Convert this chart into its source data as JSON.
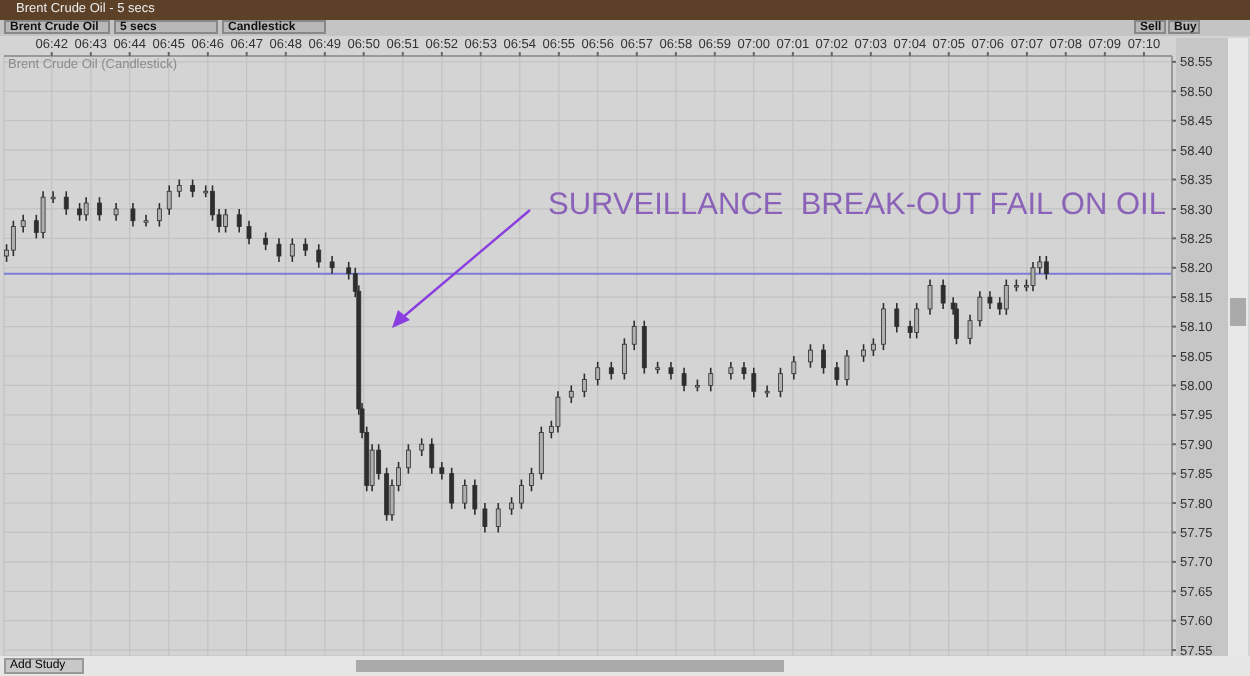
{
  "chart_data": {
    "type": "candlestick",
    "title": "Brent Crude Oil - 5 secs",
    "subtitle": "Brent Crude Oil (Candlestick)",
    "annotations": [
      "Brent Crude Oil",
      "5 secs",
      "Candlestick",
      "Sell",
      "Buy",
      "Add Study",
      "SURVEILLANCE  BREAK-OUT FAIL ON OIL"
    ],
    "color": "#2e2e2e",
    "x": [
      6.6807,
      6.6836,
      6.6878,
      6.6934,
      6.6963,
      6.7006,
      6.7062,
      6.7119,
      6.7147,
      6.7204,
      6.7275,
      6.7347,
      6.7403,
      6.746,
      6.7502,
      6.7545,
      6.7602,
      6.7658,
      6.7687,
      6.7715,
      6.7743,
      6.7801,
      6.7843,
      6.7914,
      6.7971,
      6.8028,
      6.8084,
      6.8141,
      6.8198,
      6.8269,
      6.8297,
      6.8312,
      6.8326,
      6.8346,
      6.8369,
      6.8397,
      6.8431,
      6.8454,
      6.8482,
      6.8524,
      6.8581,
      6.8624,
      6.8667,
      6.8709,
      6.8765,
      6.8808,
      6.8851,
      6.8908,
      6.8965,
      6.9007,
      6.905,
      6.9092,
      6.9135,
      6.9163,
      6.922,
      6.9276,
      6.9333,
      6.9391,
      6.9447,
      6.9489,
      6.9532,
      6.9589,
      6.9646,
      6.9702,
      6.9759,
      6.9816,
      6.9902,
      6.9958,
      7.0,
      7.0057,
      7.0114,
      7.0171,
      7.0242,
      7.0298,
      7.0355,
      7.0398,
      7.0469,
      7.0511,
      7.0554,
      7.0611,
      7.0668,
      7.0696,
      7.0753,
      7.0809,
      7.0852,
      7.0866,
      7.0924,
      7.0966,
      7.1009,
      7.1051,
      7.1079,
      7.1122,
      7.1165,
      7.1193,
      7.1222,
      7.125
    ],
    "ohlc": [
      [
        58.22,
        58.24,
        58.21,
        58.23
      ],
      [
        58.23,
        58.28,
        58.22,
        58.27
      ],
      [
        58.27,
        58.29,
        58.26,
        58.28
      ],
      [
        58.28,
        58.29,
        58.25,
        58.26
      ],
      [
        58.26,
        58.33,
        58.25,
        58.32
      ],
      [
        58.32,
        58.33,
        58.31,
        58.32
      ],
      [
        58.32,
        58.33,
        58.29,
        58.3
      ],
      [
        58.3,
        58.31,
        58.28,
        58.29
      ],
      [
        58.29,
        58.32,
        58.28,
        58.31
      ],
      [
        58.31,
        58.32,
        58.28,
        58.29
      ],
      [
        58.29,
        58.31,
        58.28,
        58.3
      ],
      [
        58.3,
        58.31,
        58.27,
        58.28
      ],
      [
        58.28,
        58.29,
        58.27,
        58.28
      ],
      [
        58.28,
        58.31,
        58.27,
        58.3
      ],
      [
        58.3,
        58.34,
        58.29,
        58.33
      ],
      [
        58.33,
        58.35,
        58.32,
        58.34
      ],
      [
        58.34,
        58.35,
        58.32,
        58.33
      ],
      [
        58.33,
        58.34,
        58.32,
        58.33
      ],
      [
        58.33,
        58.34,
        58.28,
        58.29
      ],
      [
        58.29,
        58.3,
        58.26,
        58.27
      ],
      [
        58.27,
        58.3,
        58.26,
        58.29
      ],
      [
        58.29,
        58.3,
        58.26,
        58.27
      ],
      [
        58.27,
        58.28,
        58.24,
        58.25
      ],
      [
        58.25,
        58.26,
        58.23,
        58.24
      ],
      [
        58.24,
        58.25,
        58.21,
        58.22
      ],
      [
        58.22,
        58.25,
        58.21,
        58.24
      ],
      [
        58.24,
        58.25,
        58.22,
        58.23
      ],
      [
        58.23,
        58.24,
        58.2,
        58.21
      ],
      [
        58.21,
        58.22,
        58.19,
        58.2
      ],
      [
        58.2,
        58.21,
        58.18,
        58.19
      ],
      [
        58.19,
        58.2,
        58.15,
        58.16
      ],
      [
        58.16,
        58.17,
        57.95,
        57.96
      ],
      [
        57.96,
        57.97,
        57.91,
        57.92
      ],
      [
        57.92,
        57.93,
        57.82,
        57.83
      ],
      [
        57.83,
        57.9,
        57.82,
        57.89
      ],
      [
        57.89,
        57.9,
        57.84,
        57.85
      ],
      [
        57.85,
        57.86,
        57.77,
        57.78
      ],
      [
        57.78,
        57.84,
        57.77,
        57.83
      ],
      [
        57.83,
        57.87,
        57.82,
        57.86
      ],
      [
        57.86,
        57.9,
        57.85,
        57.89
      ],
      [
        57.89,
        57.91,
        57.88,
        57.9
      ],
      [
        57.9,
        57.91,
        57.85,
        57.86
      ],
      [
        57.86,
        57.87,
        57.84,
        57.85
      ],
      [
        57.85,
        57.86,
        57.79,
        57.8
      ],
      [
        57.8,
        57.84,
        57.79,
        57.83
      ],
      [
        57.83,
        57.84,
        57.78,
        57.79
      ],
      [
        57.79,
        57.8,
        57.75,
        57.76
      ],
      [
        57.76,
        57.8,
        57.75,
        57.79
      ],
      [
        57.79,
        57.81,
        57.78,
        57.8
      ],
      [
        57.8,
        57.84,
        57.79,
        57.83
      ],
      [
        57.83,
        57.86,
        57.82,
        57.85
      ],
      [
        57.85,
        57.93,
        57.84,
        57.92
      ],
      [
        57.92,
        57.94,
        57.91,
        57.93
      ],
      [
        57.93,
        57.99,
        57.92,
        57.98
      ],
      [
        57.98,
        58.0,
        57.97,
        57.99
      ],
      [
        57.99,
        58.02,
        57.98,
        58.01
      ],
      [
        58.01,
        58.04,
        58.0,
        58.03
      ],
      [
        58.03,
        58.04,
        58.01,
        58.02
      ],
      [
        58.02,
        58.08,
        58.01,
        58.07
      ],
      [
        58.07,
        58.11,
        58.06,
        58.1
      ],
      [
        58.1,
        58.11,
        58.02,
        58.03
      ],
      [
        58.03,
        58.04,
        58.02,
        58.03
      ],
      [
        58.03,
        58.04,
        58.01,
        58.02
      ],
      [
        58.02,
        58.03,
        57.99,
        58.0
      ],
      [
        58.0,
        58.01,
        57.99,
        58.0
      ],
      [
        58.0,
        58.03,
        57.99,
        58.02
      ],
      [
        58.02,
        58.04,
        58.01,
        58.03
      ],
      [
        58.03,
        58.04,
        58.01,
        58.02
      ],
      [
        58.02,
        58.03,
        57.98,
        57.99
      ],
      [
        57.99,
        58.0,
        57.98,
        57.99
      ],
      [
        57.99,
        58.03,
        57.98,
        58.02
      ],
      [
        58.02,
        58.05,
        58.01,
        58.04
      ],
      [
        58.04,
        58.07,
        58.03,
        58.06
      ],
      [
        58.06,
        58.07,
        58.02,
        58.03
      ],
      [
        58.03,
        58.04,
        58.0,
        58.01
      ],
      [
        58.01,
        58.06,
        58.0,
        58.05
      ],
      [
        58.05,
        58.07,
        58.04,
        58.06
      ],
      [
        58.06,
        58.08,
        58.05,
        58.07
      ],
      [
        58.07,
        58.14,
        58.06,
        58.13
      ],
      [
        58.13,
        58.14,
        58.09,
        58.1
      ],
      [
        58.1,
        58.11,
        58.08,
        58.09
      ],
      [
        58.09,
        58.14,
        58.08,
        58.13
      ],
      [
        58.13,
        58.18,
        58.12,
        58.17
      ],
      [
        58.17,
        58.18,
        58.13,
        58.14
      ],
      [
        58.14,
        58.15,
        58.12,
        58.13
      ],
      [
        58.13,
        58.14,
        58.07,
        58.08
      ],
      [
        58.08,
        58.12,
        58.07,
        58.11
      ],
      [
        58.11,
        58.16,
        58.1,
        58.15
      ],
      [
        58.15,
        58.16,
        58.13,
        58.14
      ],
      [
        58.14,
        58.15,
        58.12,
        58.13
      ],
      [
        58.13,
        58.18,
        58.12,
        58.17
      ],
      [
        58.17,
        58.18,
        58.16,
        58.17
      ],
      [
        58.17,
        58.18,
        58.16,
        58.17
      ],
      [
        58.17,
        58.21,
        58.16,
        58.2
      ],
      [
        58.2,
        58.22,
        58.19,
        58.21
      ],
      [
        58.21,
        58.22,
        58.18,
        58.19
      ]
    ],
    "xlim": [
      6.6796,
      7.1787
    ],
    "xticks": [
      {
        "value": 6.7,
        "label": "06:42"
      },
      {
        "value": 6.7167,
        "label": "06:43"
      },
      {
        "value": 6.7333,
        "label": "06:44"
      },
      {
        "value": 6.75,
        "label": "06:45"
      },
      {
        "value": 6.7667,
        "label": "06:46"
      },
      {
        "value": 6.7833,
        "label": "06:47"
      },
      {
        "value": 6.8,
        "label": "06:48"
      },
      {
        "value": 6.8167,
        "label": "06:49"
      },
      {
        "value": 6.8333,
        "label": "06:50"
      },
      {
        "value": 6.85,
        "label": "06:51"
      },
      {
        "value": 6.8667,
        "label": "06:52"
      },
      {
        "value": 6.8833,
        "label": "06:53"
      },
      {
        "value": 6.9,
        "label": "06:54"
      },
      {
        "value": 6.9167,
        "label": "06:55"
      },
      {
        "value": 6.9333,
        "label": "06:56"
      },
      {
        "value": 6.95,
        "label": "06:57"
      },
      {
        "value": 6.9667,
        "label": "06:58"
      },
      {
        "value": 6.9833,
        "label": "06:59"
      },
      {
        "value": 7.0,
        "label": "07:00"
      },
      {
        "value": 7.0167,
        "label": "07:01"
      },
      {
        "value": 7.0333,
        "label": "07:02"
      },
      {
        "value": 7.05,
        "label": "07:03"
      },
      {
        "value": 7.0667,
        "label": "07:04"
      },
      {
        "value": 7.0833,
        "label": "07:05"
      },
      {
        "value": 7.1,
        "label": "07:06"
      },
      {
        "value": 7.1167,
        "label": "07:07"
      },
      {
        "value": 7.1333,
        "label": "07:08"
      },
      {
        "value": 7.15,
        "label": "07:09"
      },
      {
        "value": 7.1667,
        "label": "07:10"
      }
    ],
    "ylim": [
      57.54,
      58.56
    ],
    "yticks": [
      {
        "value": 57.55,
        "label": "57.55"
      },
      {
        "value": 57.6,
        "label": "57.60"
      },
      {
        "value": 57.65,
        "label": "57.65"
      },
      {
        "value": 57.7,
        "label": "57.70"
      },
      {
        "value": 57.75,
        "label": "57.75"
      },
      {
        "value": 57.8,
        "label": "57.80"
      },
      {
        "value": 57.85,
        "label": "57.85"
      },
      {
        "value": 57.9,
        "label": "57.90"
      },
      {
        "value": 57.95,
        "label": "57.95"
      },
      {
        "value": 58.0,
        "label": "58.00"
      },
      {
        "value": 58.05,
        "label": "58.05"
      },
      {
        "value": 58.1,
        "label": "58.10"
      },
      {
        "value": 58.15,
        "label": "58.15"
      },
      {
        "value": 58.2,
        "label": "58.20"
      },
      {
        "value": 58.25,
        "label": "58.25"
      },
      {
        "value": 58.3,
        "label": "58.30"
      },
      {
        "value": 58.35,
        "label": "58.35"
      },
      {
        "value": 58.4,
        "label": "58.40"
      },
      {
        "value": 58.45,
        "label": "58.45"
      },
      {
        "value": 58.5,
        "label": "58.50"
      },
      {
        "value": 58.55,
        "label": "58.55"
      }
    ],
    "ref_lines": [
      {
        "axis": "y",
        "value": 58.19,
        "color": "#7b7bd8"
      }
    ],
    "grid": true
  }
}
